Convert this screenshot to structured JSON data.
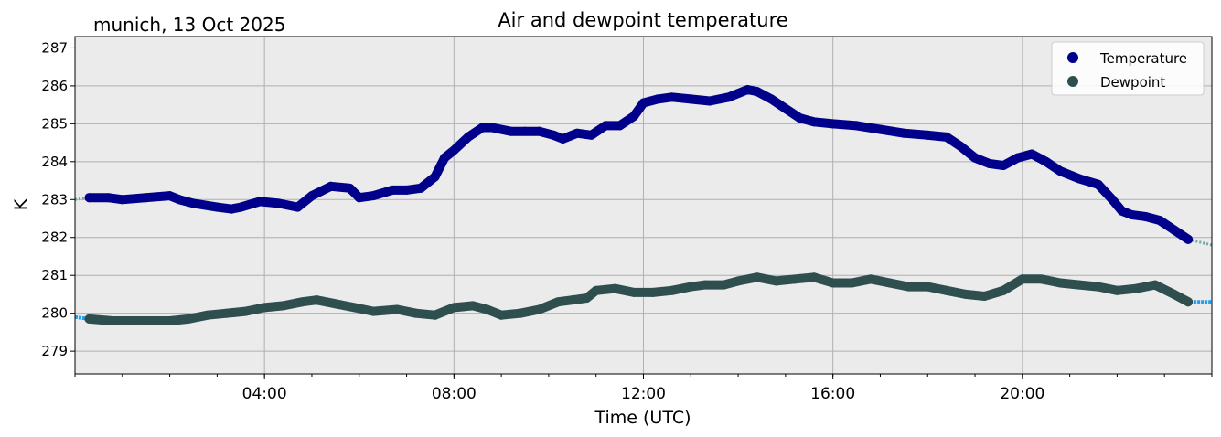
{
  "chart_data": {
    "type": "line",
    "title": "Air and dewpoint temperature",
    "subtitle": "munich, 13 Oct 2025",
    "xlabel": "Time (UTC)",
    "ylabel": "K",
    "xlim_hours": [
      0,
      24
    ],
    "ylim": [
      278.4,
      287.3
    ],
    "x_ticks": [
      {
        "hour": 4,
        "label": "04:00"
      },
      {
        "hour": 8,
        "label": "08:00"
      },
      {
        "hour": 12,
        "label": "12:00"
      },
      {
        "hour": 16,
        "label": "16:00"
      },
      {
        "hour": 20,
        "label": "20:00"
      }
    ],
    "y_ticks": [
      279,
      280,
      281,
      282,
      283,
      284,
      285,
      286,
      287
    ],
    "grid": true,
    "legend_position": "top-right",
    "legend": [
      {
        "label": "Temperature",
        "color": "#00008b"
      },
      {
        "label": "Dewpoint",
        "color": "#2f4f4f"
      }
    ],
    "series": [
      {
        "name": "Temperature",
        "role": "smoothed",
        "color": "#00008b",
        "x": [
          0.3,
          0.7,
          1.0,
          1.5,
          2.0,
          2.2,
          2.5,
          3.0,
          3.3,
          3.5,
          3.9,
          4.3,
          4.7,
          5.0,
          5.4,
          5.8,
          6.0,
          6.3,
          6.7,
          7.0,
          7.3,
          7.6,
          7.8,
          8.0,
          8.3,
          8.6,
          8.8,
          9.2,
          9.5,
          9.8,
          10.1,
          10.3,
          10.6,
          10.9,
          11.2,
          11.5,
          11.8,
          12.0,
          12.3,
          12.6,
          13.0,
          13.4,
          13.8,
          14.2,
          14.4,
          14.7,
          15.0,
          15.3,
          15.6,
          16.0,
          16.5,
          17.0,
          17.5,
          18.0,
          18.4,
          18.7,
          19.0,
          19.3,
          19.6,
          19.9,
          20.2,
          20.5,
          20.8,
          21.2,
          21.6,
          21.9,
          22.1,
          22.3,
          22.6,
          22.9,
          23.2,
          23.5
        ],
        "values": [
          283.05,
          283.05,
          283.0,
          283.05,
          283.1,
          283.0,
          282.9,
          282.8,
          282.75,
          282.8,
          282.95,
          282.9,
          282.8,
          283.1,
          283.35,
          283.3,
          283.05,
          283.1,
          283.25,
          283.25,
          283.3,
          283.6,
          284.1,
          284.3,
          284.65,
          284.9,
          284.9,
          284.8,
          284.8,
          284.8,
          284.7,
          284.6,
          284.75,
          284.7,
          284.95,
          284.95,
          285.2,
          285.55,
          285.65,
          285.7,
          285.65,
          285.6,
          285.7,
          285.9,
          285.85,
          285.65,
          285.4,
          285.15,
          285.05,
          285.0,
          284.95,
          284.85,
          284.75,
          284.7,
          284.65,
          284.4,
          284.1,
          283.95,
          283.9,
          284.1,
          284.2,
          284.0,
          283.75,
          283.55,
          283.4,
          283.0,
          282.7,
          282.6,
          282.55,
          282.45,
          282.2,
          281.95
        ]
      },
      {
        "name": "Dewpoint",
        "role": "smoothed",
        "color": "#2f4f4f",
        "x": [
          0.3,
          0.8,
          1.2,
          1.6,
          2.0,
          2.4,
          2.8,
          3.2,
          3.6,
          4.0,
          4.4,
          4.8,
          5.1,
          5.5,
          5.9,
          6.3,
          6.8,
          7.2,
          7.6,
          8.0,
          8.4,
          8.7,
          9.0,
          9.4,
          9.8,
          10.2,
          10.5,
          10.8,
          11.0,
          11.4,
          11.8,
          12.2,
          12.6,
          13.0,
          13.3,
          13.7,
          14.0,
          14.4,
          14.8,
          15.2,
          15.6,
          16.0,
          16.4,
          16.8,
          17.2,
          17.6,
          18.0,
          18.4,
          18.8,
          19.2,
          19.6,
          20.0,
          20.4,
          20.8,
          21.2,
          21.6,
          22.0,
          22.4,
          22.8,
          23.2,
          23.5
        ],
        "values": [
          279.85,
          279.8,
          279.8,
          279.8,
          279.8,
          279.85,
          279.95,
          280.0,
          280.05,
          280.15,
          280.2,
          280.3,
          280.35,
          280.25,
          280.15,
          280.05,
          280.1,
          280.0,
          279.95,
          280.15,
          280.2,
          280.1,
          279.95,
          280.0,
          280.1,
          280.3,
          280.35,
          280.4,
          280.6,
          280.65,
          280.55,
          280.55,
          280.6,
          280.7,
          280.75,
          280.75,
          280.85,
          280.95,
          280.85,
          280.9,
          280.95,
          280.8,
          280.8,
          280.9,
          280.8,
          280.7,
          280.7,
          280.6,
          280.5,
          280.45,
          280.6,
          280.9,
          280.9,
          280.8,
          280.75,
          280.7,
          280.6,
          280.65,
          280.75,
          280.5,
          280.3
        ]
      },
      {
        "name": "Temperature raw",
        "role": "raw",
        "color": "#6fa8a8",
        "x": [
          0.0,
          0.3,
          0.7,
          1.0,
          1.5,
          2.0,
          2.5,
          3.0,
          3.5,
          3.9,
          4.3,
          4.7,
          5.0,
          5.4,
          5.8,
          6.0,
          6.3,
          6.7,
          7.0,
          7.3,
          7.6,
          7.8,
          8.0,
          8.3,
          8.6,
          8.8,
          9.2,
          9.5,
          9.8,
          10.1,
          10.3,
          10.6,
          10.9,
          11.2,
          11.5,
          11.8,
          12.0,
          12.3,
          12.6,
          13.0,
          13.4,
          13.8,
          14.2,
          14.7,
          15.0,
          15.3,
          15.6,
          16.0,
          16.5,
          17.0,
          17.5,
          18.0,
          18.4,
          18.7,
          19.0,
          19.3,
          19.6,
          19.9,
          20.2,
          20.5,
          20.8,
          21.2,
          21.6,
          21.9,
          22.1,
          22.3,
          22.6,
          22.9,
          23.2,
          23.5,
          24.0
        ],
        "values": [
          283.0,
          283.05,
          283.05,
          283.0,
          283.05,
          283.1,
          282.9,
          282.8,
          282.8,
          282.95,
          282.9,
          282.8,
          283.1,
          283.35,
          283.3,
          283.05,
          283.1,
          283.25,
          283.25,
          283.3,
          283.6,
          284.1,
          284.3,
          284.65,
          284.9,
          284.9,
          284.8,
          284.8,
          284.8,
          284.7,
          284.6,
          284.75,
          284.7,
          284.95,
          284.95,
          285.2,
          285.55,
          285.65,
          285.7,
          285.65,
          285.6,
          285.7,
          285.9,
          285.65,
          285.4,
          285.15,
          285.05,
          285.0,
          284.95,
          284.85,
          284.75,
          284.7,
          284.65,
          284.4,
          284.1,
          283.95,
          283.9,
          284.1,
          284.2,
          284.0,
          283.75,
          283.55,
          283.4,
          283.0,
          282.7,
          282.6,
          282.55,
          282.45,
          282.2,
          281.95,
          281.8
        ]
      },
      {
        "name": "Dewpoint raw",
        "role": "raw",
        "color": "#1f9fee",
        "x": [
          0.0,
          0.3,
          0.8,
          1.2,
          1.6,
          2.0,
          2.4,
          2.8,
          3.2,
          3.6,
          4.0,
          4.4,
          4.8,
          5.1,
          5.5,
          5.9,
          6.3,
          6.8,
          7.2,
          7.6,
          8.0,
          8.4,
          8.7,
          9.0,
          9.4,
          9.8,
          10.2,
          10.5,
          10.8,
          11.0,
          11.4,
          11.8,
          12.2,
          12.6,
          13.0,
          13.3,
          13.7,
          14.0,
          14.4,
          14.8,
          15.2,
          15.6,
          16.0,
          16.4,
          16.8,
          17.2,
          17.6,
          18.0,
          18.4,
          18.8,
          19.2,
          19.6,
          20.0,
          20.4,
          20.8,
          21.2,
          21.6,
          22.0,
          22.4,
          22.8,
          23.2,
          23.5,
          24.0
        ],
        "values": [
          279.9,
          279.85,
          279.8,
          279.8,
          279.8,
          279.8,
          279.85,
          279.95,
          280.0,
          280.05,
          280.15,
          280.2,
          280.3,
          280.35,
          280.25,
          280.15,
          280.05,
          280.1,
          280.0,
          279.95,
          280.15,
          280.2,
          280.1,
          279.95,
          280.0,
          280.1,
          280.3,
          280.35,
          280.4,
          280.6,
          280.65,
          280.55,
          280.55,
          280.6,
          280.7,
          280.75,
          280.75,
          280.85,
          280.95,
          280.85,
          280.9,
          280.95,
          280.8,
          280.8,
          280.9,
          280.8,
          280.7,
          280.7,
          280.6,
          280.5,
          280.45,
          280.6,
          280.9,
          280.9,
          280.8,
          280.75,
          280.7,
          280.6,
          280.65,
          280.75,
          280.5,
          280.3,
          280.3
        ]
      }
    ]
  }
}
